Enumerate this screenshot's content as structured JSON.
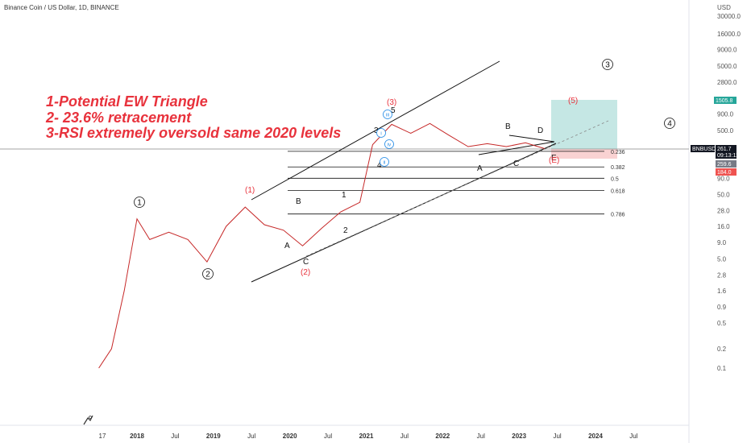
{
  "header": {
    "title": "Binance Coin / US Dollar, 1D, BINANCE"
  },
  "notes": [
    "1-Potential EW Triangle",
    "2- 23.6% retracement",
    "3-RSI extremely oversold same 2020 levels"
  ],
  "axis": {
    "currency": "USD",
    "price_ticks": [
      "30000.0",
      "16000.0",
      "9000.0",
      "5000.0",
      "2800.0",
      "900.0",
      "500.0",
      "90.0",
      "50.0",
      "28.0",
      "16.0",
      "9.0",
      "5.0",
      "2.8",
      "1.6",
      "0.9",
      "0.5",
      "0.2",
      "0.1"
    ],
    "time_ticks": [
      {
        "label": "17",
        "bold": false
      },
      {
        "label": "2018",
        "bold": true
      },
      {
        "label": "Jul",
        "bold": false
      },
      {
        "label": "2019",
        "bold": true
      },
      {
        "label": "Jul",
        "bold": false
      },
      {
        "label": "2020",
        "bold": true
      },
      {
        "label": "Jul",
        "bold": false
      },
      {
        "label": "2021",
        "bold": true
      },
      {
        "label": "Jul",
        "bold": false
      },
      {
        "label": "2022",
        "bold": true
      },
      {
        "label": "Jul",
        "bold": false
      },
      {
        "label": "2023",
        "bold": true
      },
      {
        "label": "Jul",
        "bold": false
      },
      {
        "label": "2024",
        "bold": true
      },
      {
        "label": "Jul",
        "bold": false
      }
    ]
  },
  "price_tags": [
    {
      "text": "1505.8",
      "color": "#26a69a"
    },
    {
      "text": "BNBUSD",
      "color": "#131722"
    },
    {
      "text": "261.7",
      "color": "#131722"
    },
    {
      "text": "09:13:11",
      "color": "#131722"
    },
    {
      "text": "259.6",
      "color": "#787b86"
    },
    {
      "text": "184.0",
      "color": "#ef5350"
    }
  ],
  "fib_levels": [
    {
      "label": "0.236",
      "value": 236
    },
    {
      "label": "0.382",
      "value": 135
    },
    {
      "label": "0.5",
      "value": 90
    },
    {
      "label": "0.618",
      "value": 58
    },
    {
      "label": "0.786",
      "value": 25
    }
  ],
  "wave_labels": {
    "black": [
      "A",
      "B",
      "C",
      "1",
      "2",
      "3",
      "4",
      "5",
      "A",
      "B",
      "C",
      "D",
      "E"
    ],
    "red": [
      "(1)",
      "(2)",
      "(3)",
      "(5)",
      "(E)"
    ],
    "circled": [
      "1",
      "2",
      "3",
      "4"
    ],
    "roman": [
      "iii",
      "i",
      "iv",
      "ii"
    ]
  },
  "chart_data": {
    "type": "line",
    "scale": "log",
    "symbol": "BNBUSD",
    "x": [
      "2017-07",
      "2017-09",
      "2017-11",
      "2018-01",
      "2018-03",
      "2018-06",
      "2018-09",
      "2018-12",
      "2019-03",
      "2019-06",
      "2019-09",
      "2019-12",
      "2020-03",
      "2020-06",
      "2020-09",
      "2020-12",
      "2021-02",
      "2021-05",
      "2021-08",
      "2021-11",
      "2022-02",
      "2022-05",
      "2022-08",
      "2022-11",
      "2023-02",
      "2023-05"
    ],
    "values": [
      0.1,
      0.2,
      1.6,
      21,
      10,
      13,
      10,
      4.5,
      16,
      32,
      17,
      14,
      8,
      15,
      27,
      38,
      300,
      620,
      450,
      640,
      420,
      280,
      310,
      280,
      320,
      260
    ],
    "ylim": [
      0.05,
      30000
    ],
    "grid": false,
    "legend": "none"
  }
}
